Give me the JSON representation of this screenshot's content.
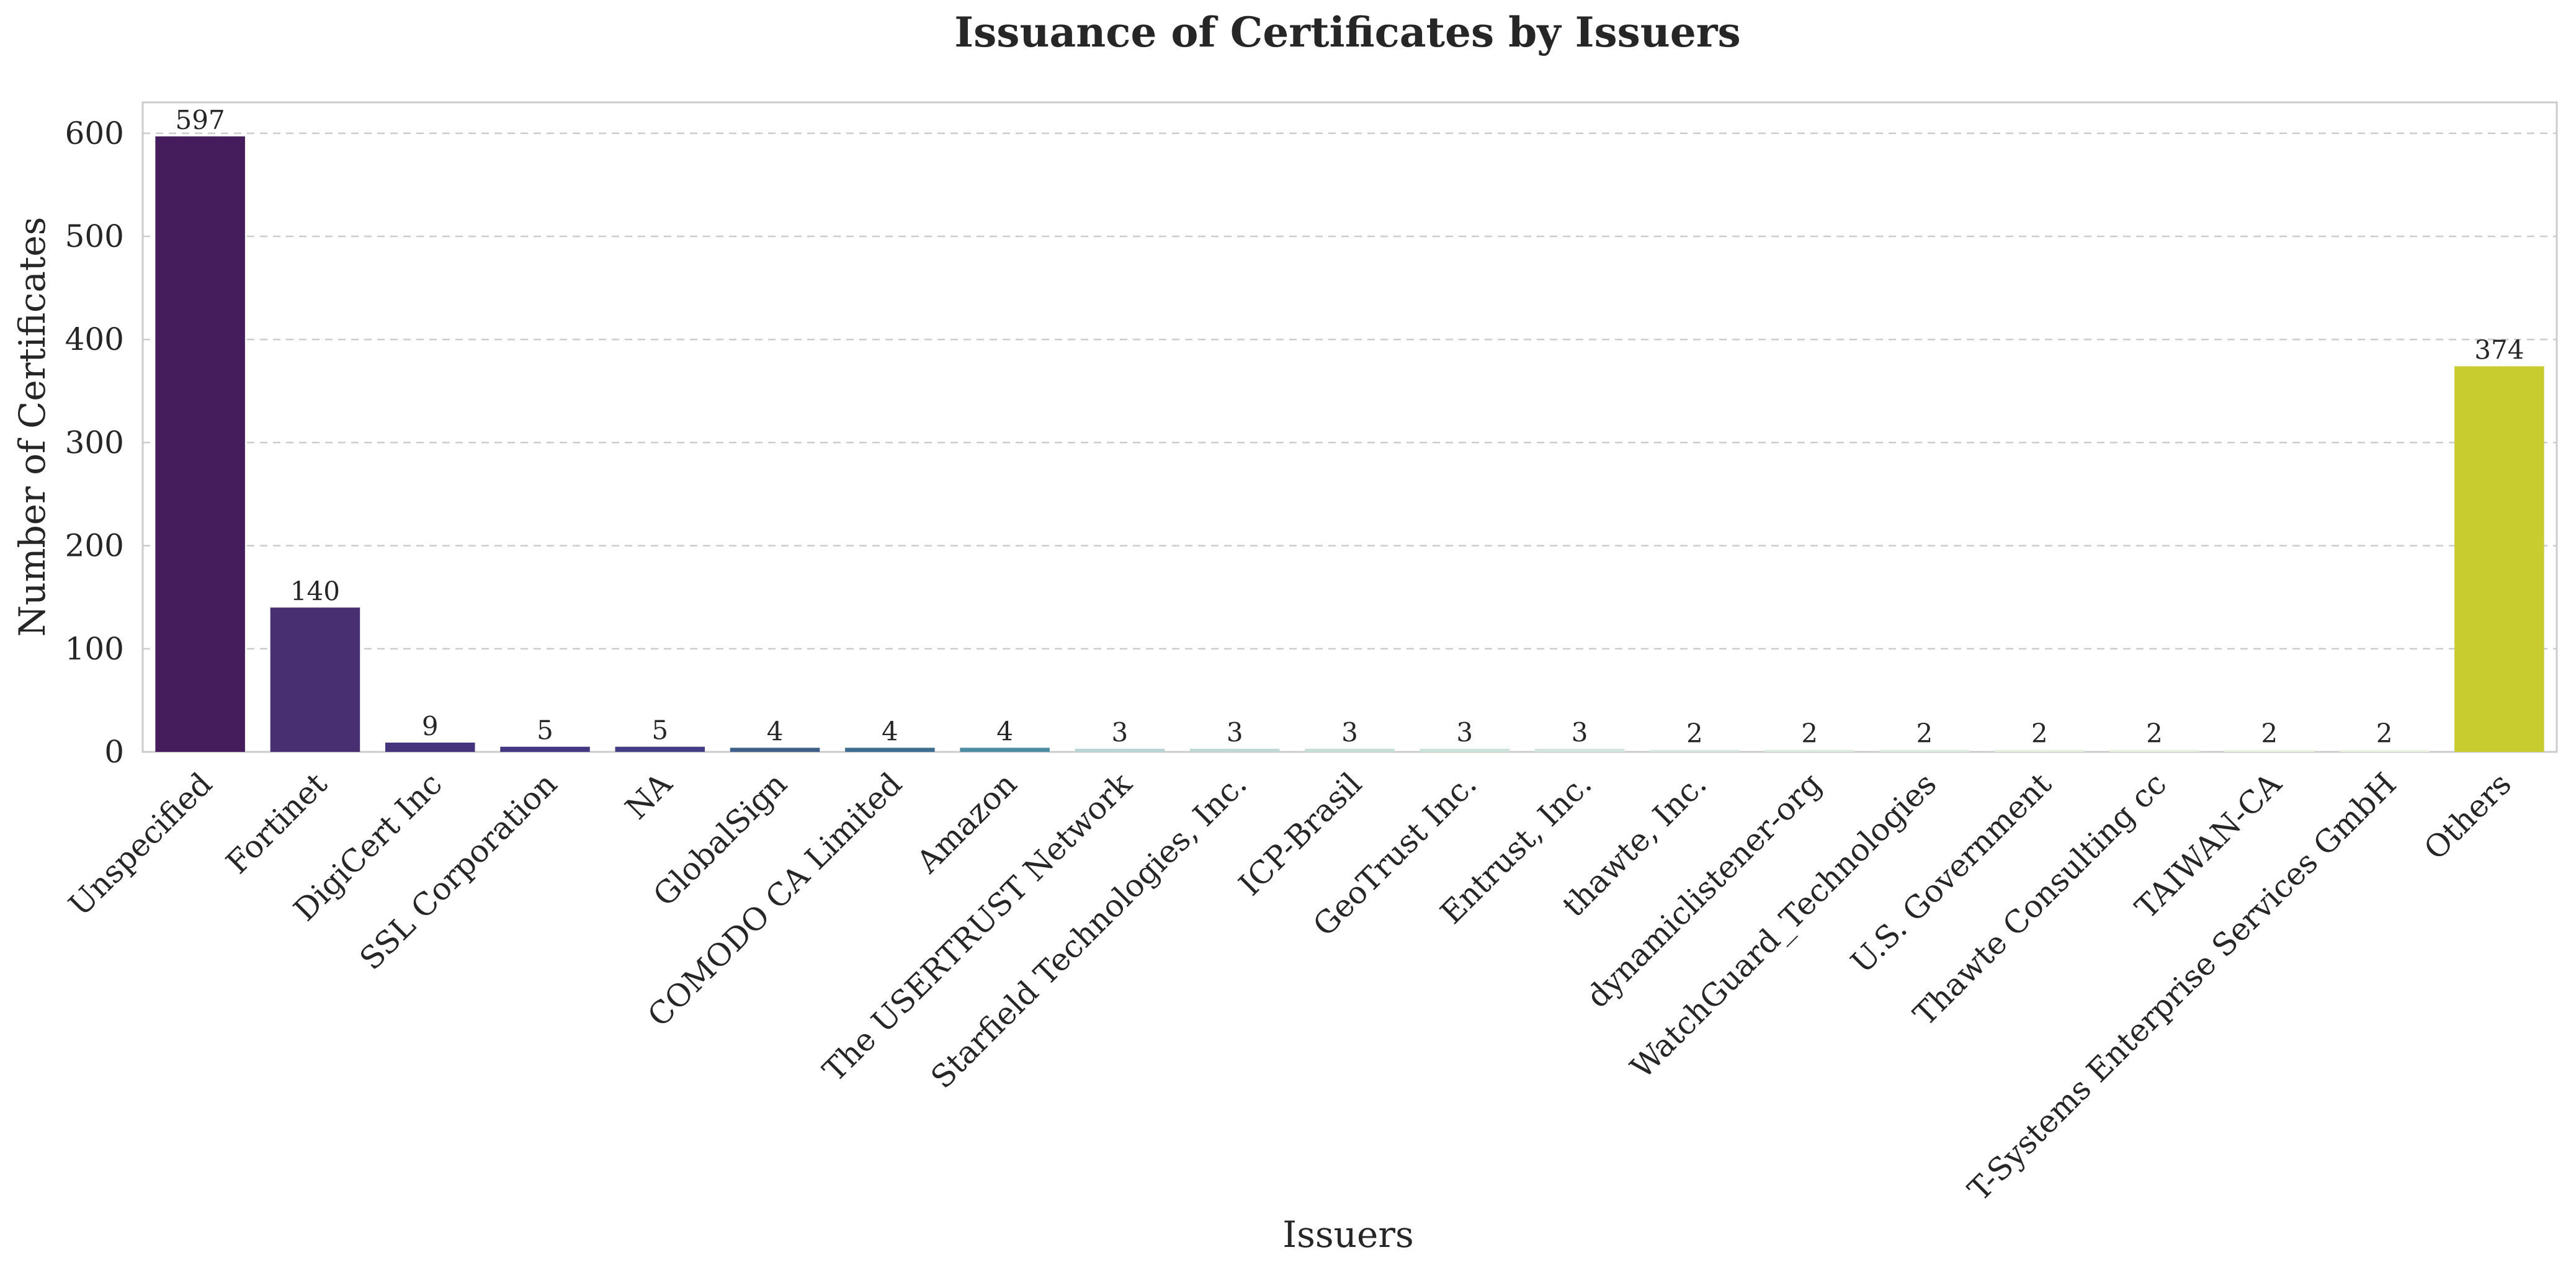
{
  "chart_data": {
    "type": "bar",
    "title": "Issuance of Certificates by Issuers",
    "xlabel": "Issuers",
    "ylabel": "Number of Certificates",
    "ylim": [
      0,
      630
    ],
    "yticks": [
      0,
      100,
      200,
      300,
      400,
      500,
      600
    ],
    "grid": "horizontal dashed",
    "legend": "none",
    "categories": [
      "Unspecified",
      "Fortinet",
      "DigiCert Inc",
      "SSL Corporation",
      "NA",
      "GlobalSign",
      "COMODO CA Limited",
      "Amazon",
      "The USERTRUST Network",
      "Starfield Technologies, Inc.",
      "ICP-Brasil",
      "GeoTrust Inc.",
      "Entrust, Inc.",
      "thawte, Inc.",
      "dynamiclistener-org",
      "WatchGuard_Technologies",
      "U.S. Government",
      "Thawte Consulting cc",
      "TAIWAN-CA",
      "T-Systems Enterprise Services GmbH",
      "Others"
    ],
    "values": [
      597,
      140,
      9,
      5,
      5,
      4,
      4,
      4,
      3,
      3,
      3,
      3,
      3,
      2,
      2,
      2,
      2,
      2,
      2,
      2,
      374
    ],
    "colors": [
      "#451c5c",
      "#482f71",
      "#46337e",
      "#453882",
      "#433e85",
      "#3e5f8a",
      "#3e6c8f",
      "#4b8ba3",
      "#b7d3d5",
      "#bedad6",
      "#c5dfd8",
      "#cce3da",
      "#d2e6dc",
      "#d7e9dd",
      "#dcecdf",
      "#e0eedf",
      "#e4f0e0",
      "#e8f2e0",
      "#ebf3e1",
      "#eef4e2",
      "#c8cc2f"
    ]
  }
}
